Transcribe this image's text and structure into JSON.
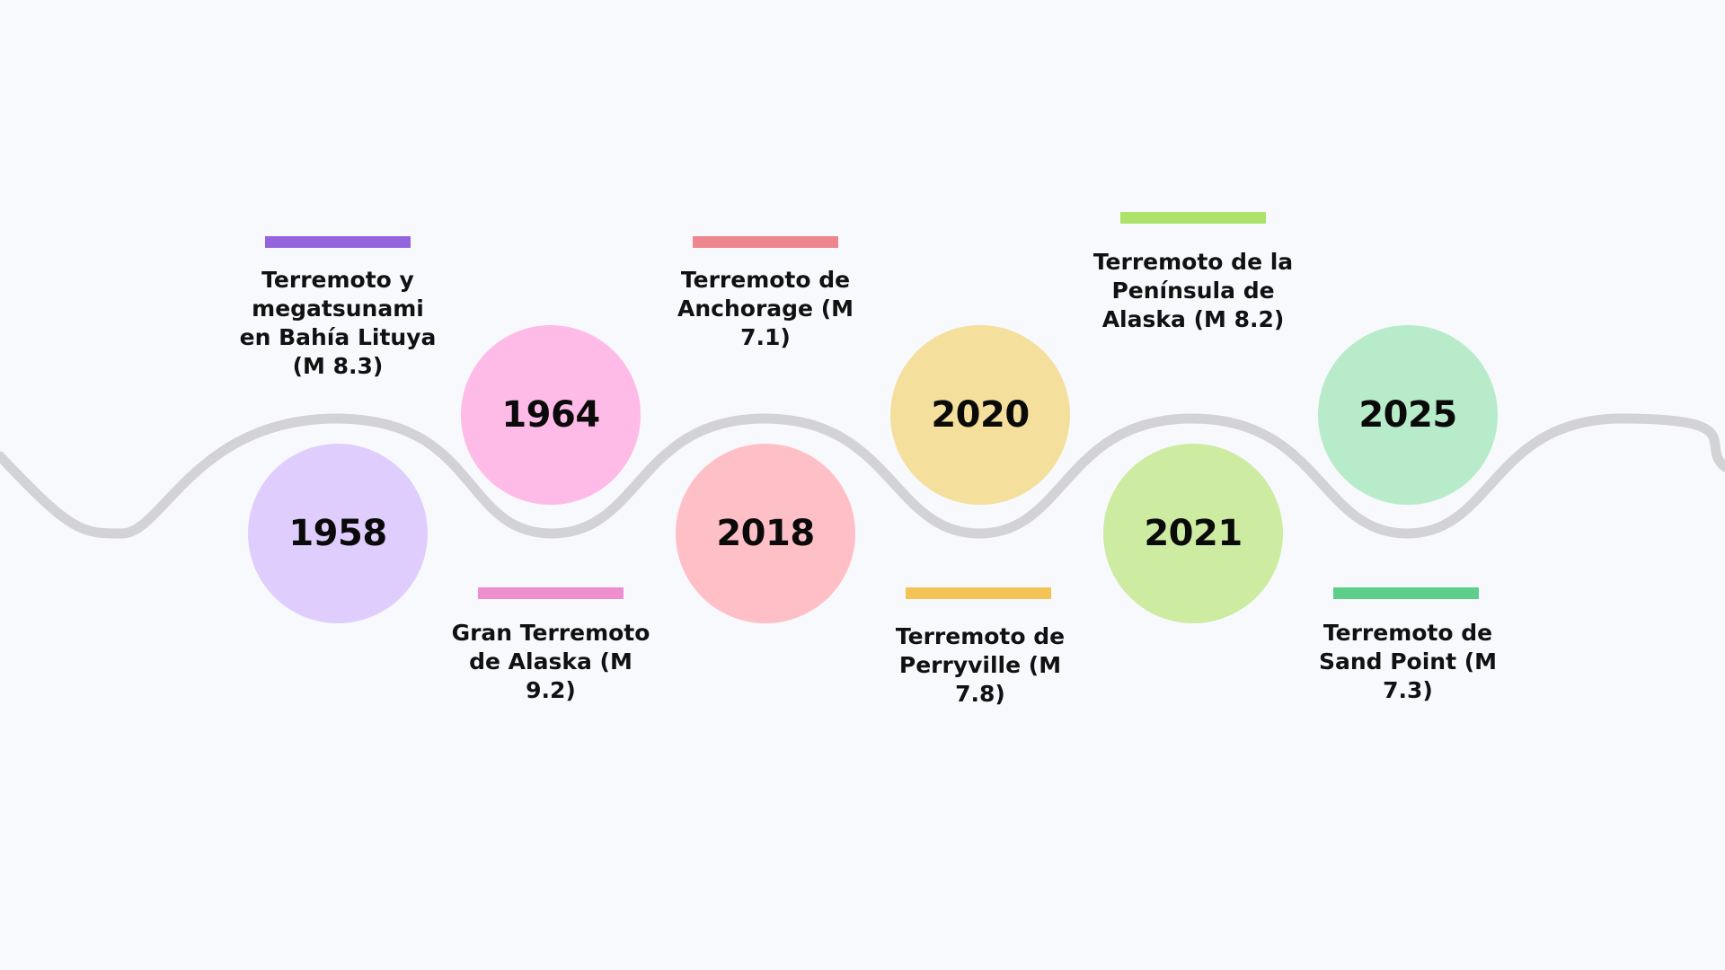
{
  "colors": {
    "background": "#f8f9fd",
    "wave": "#d3d3d5",
    "year_text": "#0a0a0a",
    "caption_text": "#111111"
  },
  "events": [
    {
      "year": "1958",
      "caption": "Terremoto y megatsunami en Bahía Lituya (M 8.3)",
      "circle_color": "#dfcefd",
      "bar_color": "#9465de"
    },
    {
      "year": "1964",
      "caption": "Gran Terremoto de Alaska (M 9.2)",
      "circle_color": "#ffbbe8",
      "bar_color": "#ee8ece"
    },
    {
      "year": "2018",
      "caption": "Terremoto de Anchorage (M 7.1)",
      "circle_color": "#ffbfc6",
      "bar_color": "#ee8690"
    },
    {
      "year": "2020",
      "caption": "Terremoto de Perryville (M 7.8)",
      "circle_color": "#f5df9d",
      "bar_color": "#f3c455"
    },
    {
      "year": "2021",
      "caption": "Terremoto de la Península de Alaska (M 8.2)",
      "circle_color": "#cdeba1",
      "bar_color": "#ade36b"
    },
    {
      "year": "2025",
      "caption": "Terremoto de Sand Point (M 7.3)",
      "circle_color": "#b7ebca",
      "bar_color": "#5dcf8a"
    }
  ]
}
